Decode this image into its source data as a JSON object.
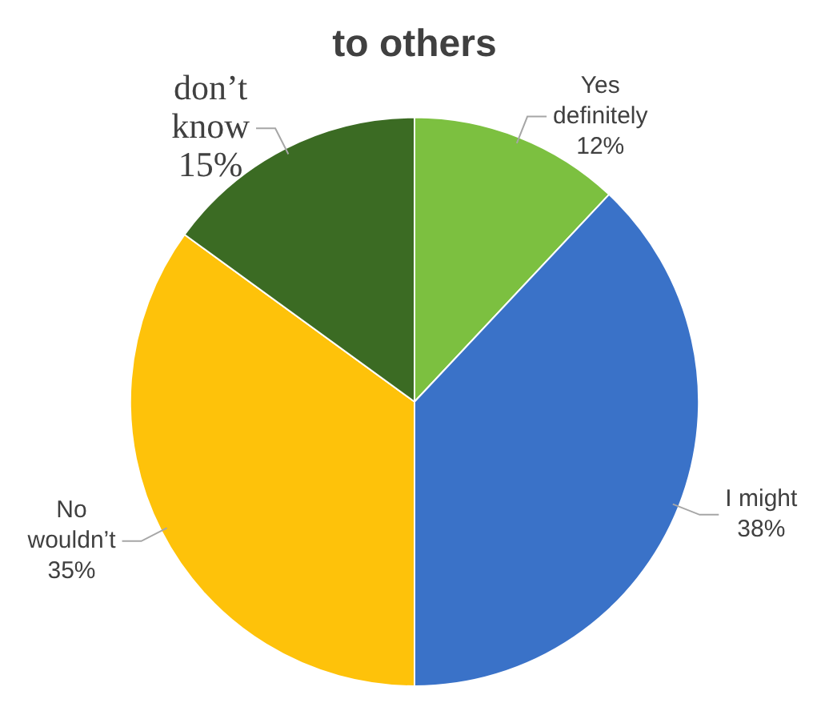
{
  "chart_data": {
    "type": "pie",
    "title": "to others",
    "categories": [
      "Yes definitely",
      "I might",
      "No wouldn’t",
      "don’t know"
    ],
    "values": [
      12,
      38,
      35,
      15
    ],
    "colors": [
      "#7cc040",
      "#3a72c8",
      "#fec20a",
      "#3b6b23"
    ],
    "value_labels": [
      "12%",
      "38%",
      "35%",
      "15%"
    ],
    "legend": false
  }
}
